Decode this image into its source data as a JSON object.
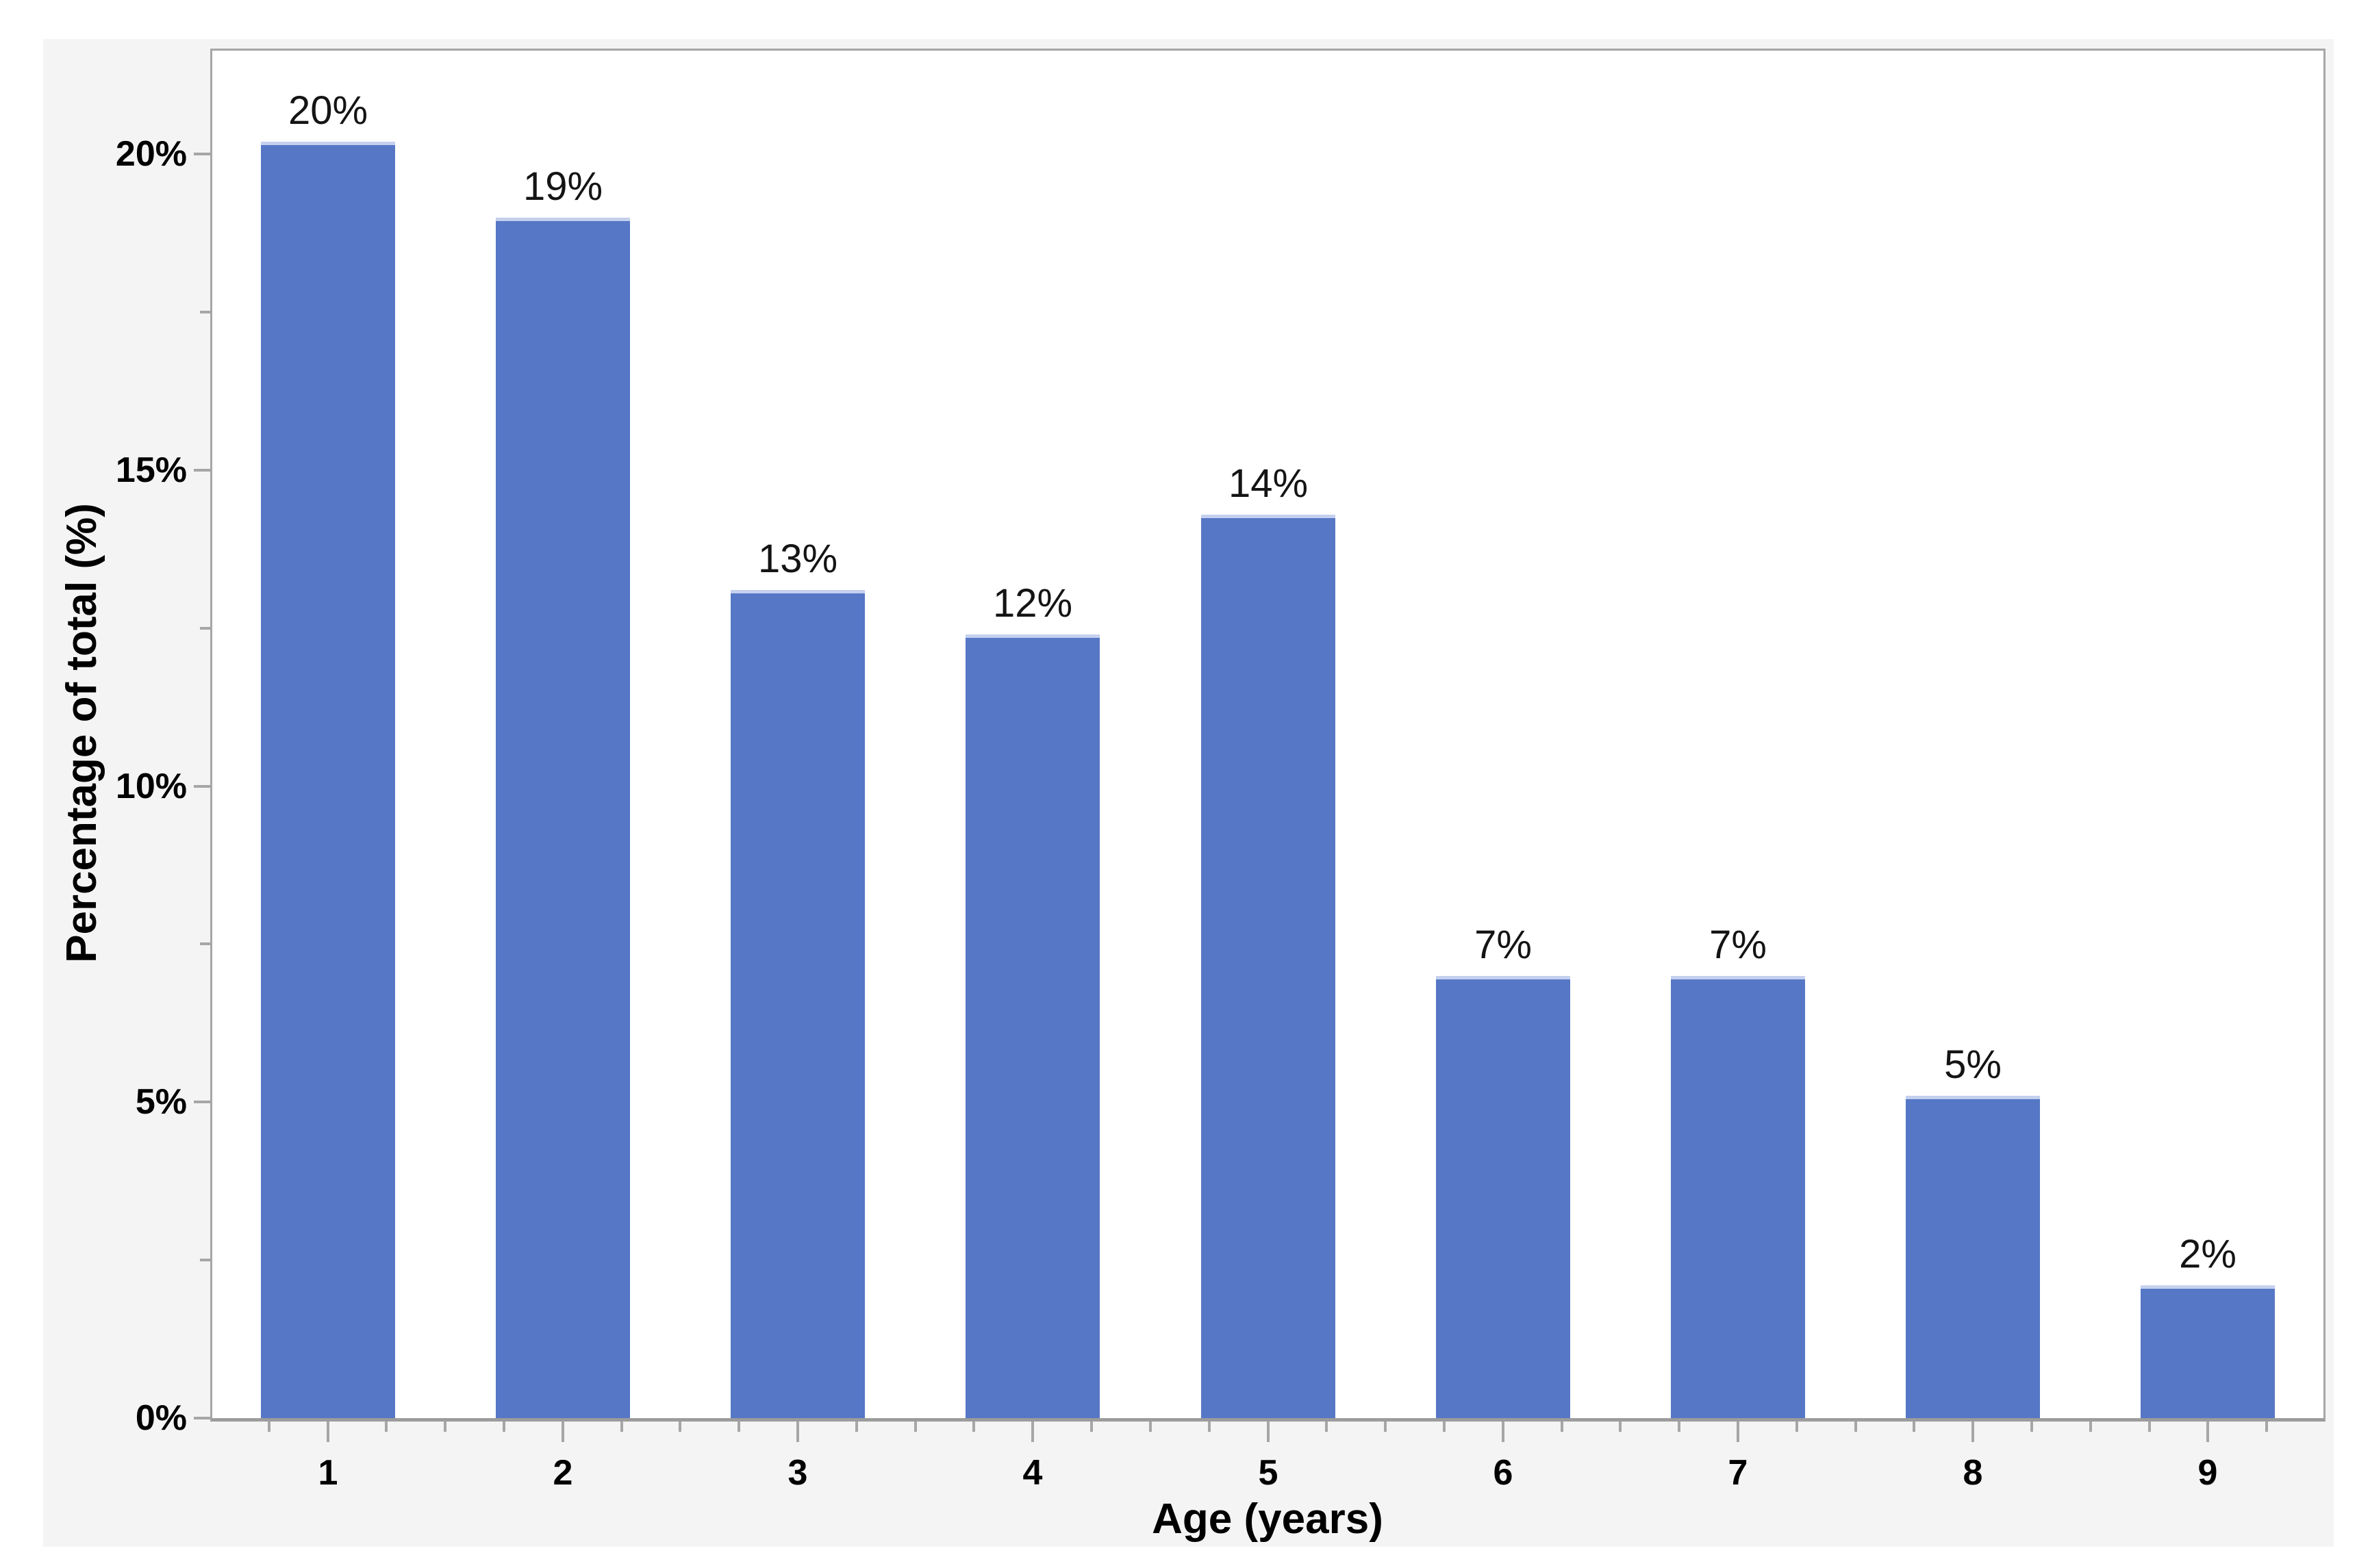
{
  "chart_data": {
    "type": "bar",
    "title": "",
    "xlabel": "Age (years)",
    "ylabel": "Percentage of total (%)",
    "categories": [
      "1",
      "2",
      "3",
      "4",
      "5",
      "6",
      "7",
      "8",
      "9"
    ],
    "values": [
      20.2,
      19.0,
      13.1,
      12.4,
      14.3,
      7.0,
      7.0,
      5.1,
      2.1
    ],
    "bar_labels": [
      "20%",
      "19%",
      "13%",
      "12%",
      "14%",
      "7%",
      "7%",
      "5%",
      "2%"
    ],
    "ylim": [
      0,
      21.67
    ],
    "yticks": {
      "major_values": [
        0,
        5,
        10,
        15,
        20
      ],
      "major_labels": [
        "0%",
        "5%",
        "10%",
        "15%",
        "20%"
      ],
      "minor_values": [
        2.5,
        7.5,
        12.5,
        17.5
      ]
    },
    "xticks_minor_between_majors": 3,
    "grid": false,
    "legend": "none",
    "bar_width_fraction": 0.57
  },
  "colors": {
    "bar": "#5677C5",
    "bar_top_highlight": "#C4D0EE",
    "frame_gray": "#A6A6A6",
    "axis_line_gray": "#9C9C9C",
    "panel_background": "#F4F4F5",
    "plot_background": "#FFFFFF",
    "tick_text": "#000000",
    "bar_label_text": "#141414"
  }
}
